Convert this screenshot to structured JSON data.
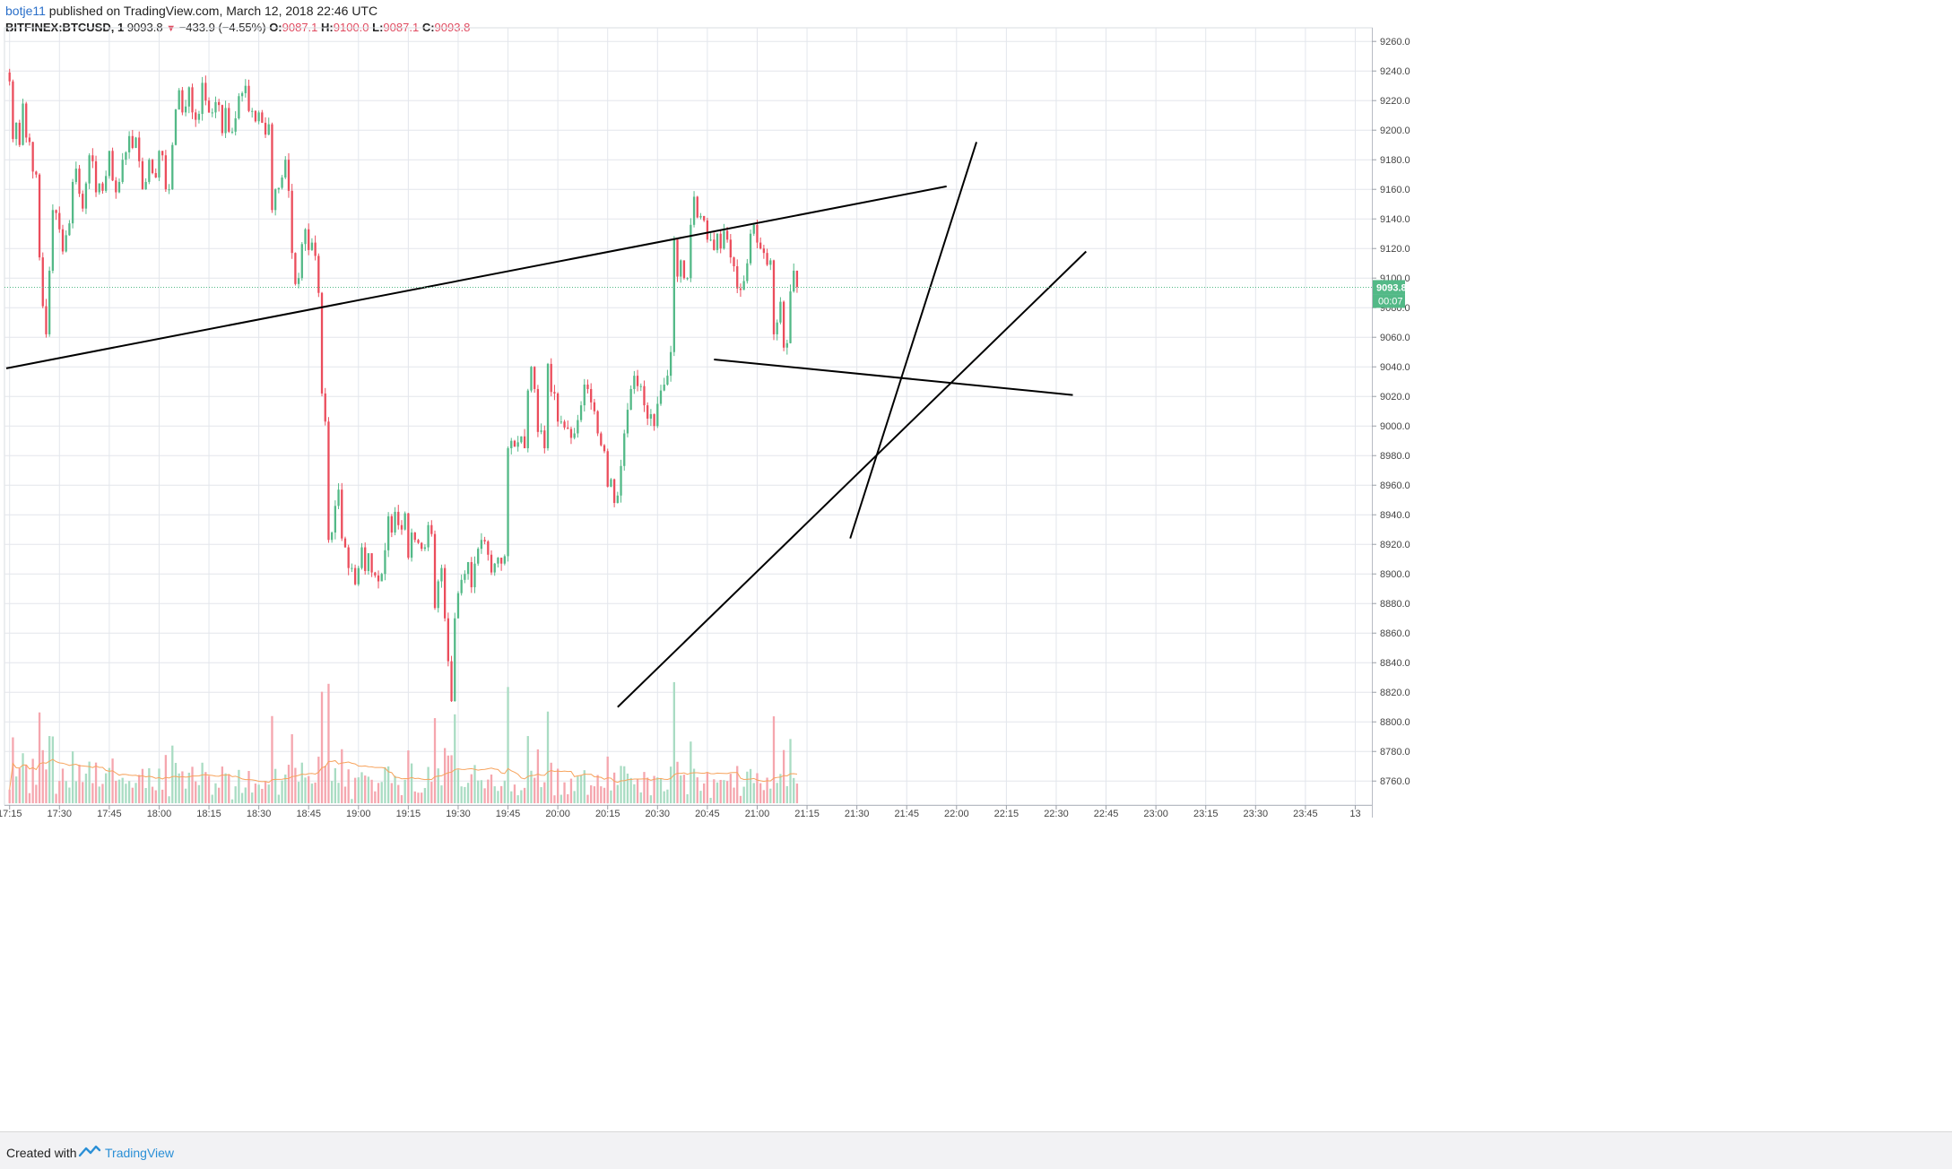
{
  "header": {
    "author": "botje11",
    "published_text": "published on TradingView.com, March 12, 2018 22:46 UTC",
    "symbol": "BITFINEX:BTCUSD, 1",
    "last": "9093.8",
    "change": "−433.9 (−4.55%)",
    "o_label": "O:",
    "o": "9087.1",
    "h_label": "H:",
    "h": "9100.0",
    "l_label": "L:",
    "l": "9087.1",
    "c_label": "C:",
    "c": "9093.8"
  },
  "footer": {
    "created_with": "Created with",
    "brand": "TradingView"
  },
  "chart_data": {
    "type": "candlestick",
    "title": "",
    "price_axis": {
      "min": 8745,
      "max": 9268,
      "ticks": [
        8760,
        8780,
        8800,
        8820,
        8840,
        8860,
        8880,
        8900,
        8920,
        8940,
        8960,
        8980,
        9000,
        9020,
        9040,
        9060,
        9080,
        9100,
        9120,
        9140,
        9160,
        9180,
        9200,
        9220,
        9240,
        9260
      ],
      "tick_labels": [
        "8760.0",
        "8780.0",
        "8800.0",
        "8820.0",
        "8840.0",
        "8860.0",
        "8880.0",
        "8900.0",
        "8920.0",
        "8940.0",
        "8960.0",
        "8980.0",
        "9000.0",
        "9020.0",
        "9040.0",
        "9060.0",
        "9080.0",
        "9100.0",
        "9120.0",
        "9140.0",
        "9160.0",
        "9180.0",
        "9200.0",
        "9220.0",
        "9240.0",
        "9260.0"
      ]
    },
    "time_axis": {
      "tick_labels": [
        "17:15",
        "17:30",
        "17:45",
        "18:00",
        "18:15",
        "18:30",
        "18:45",
        "19:00",
        "19:15",
        "19:30",
        "19:45",
        "20:00",
        "20:15",
        "20:30",
        "20:45",
        "21:00",
        "21:15",
        "21:30",
        "21:45",
        "22:00",
        "22:15",
        "22:30",
        "22:45",
        "23:00",
        "23:15",
        "23:30",
        "23:45",
        "13"
      ],
      "start_minute": 1034,
      "end_minute": 1445,
      "first_bar_minute": 1035,
      "bar_minutes": 1
    },
    "grid": true,
    "last_price": 9093.8,
    "last_price_label": "9093.8",
    "countdown_label": "00:07",
    "closes": [
      9233,
      9194,
      9205,
      9190,
      9218,
      9195,
      9192,
      9172,
      9170,
      9114,
      9081,
      9062,
      9105,
      9146,
      9144,
      9133,
      9118,
      9129,
      9137,
      9165,
      9174,
      9157,
      9147,
      9164,
      9183,
      9179,
      9158,
      9164,
      9159,
      9169,
      9186,
      9166,
      9158,
      9165,
      9180,
      9185,
      9196,
      9188,
      9195,
      9179,
      9160,
      9165,
      9180,
      9171,
      9168,
      9186,
      9183,
      9160,
      9160,
      9190,
      9214,
      9227,
      9212,
      9216,
      9229,
      9212,
      9207,
      9211,
      9232,
      9220,
      9212,
      9212,
      9219,
      9217,
      9198,
      9215,
      9199,
      9199,
      9208,
      9223,
      9225,
      9230,
      9213,
      9213,
      9206,
      9212,
      9205,
      9197,
      9204,
      9146,
      9160,
      9161,
      9168,
      9180,
      9159,
      9117,
      9096,
      9100,
      9123,
      9133,
      9119,
      9124,
      9115,
      9090,
      9022,
      9003,
      8923,
      8928,
      8946,
      8957,
      8924,
      8918,
      8904,
      8904,
      8893,
      8904,
      8918,
      8902,
      8914,
      8901,
      8899,
      8895,
      8900,
      8916,
      8939,
      8928,
      8942,
      8933,
      8930,
      8941,
      8911,
      8928,
      8923,
      8921,
      8917,
      8918,
      8933,
      8927,
      8877,
      8895,
      8904,
      8870,
      8841,
      8814,
      8870,
      8887,
      8896,
      8900,
      8908,
      8891,
      8907,
      8917,
      8923,
      8922,
      8913,
      8901,
      8907,
      8911,
      8907,
      8912,
      8985,
      8990,
      8986,
      8989,
      8993,
      8985,
      9024,
      9040,
      9025,
      8996,
      8997,
      8985,
      9042,
      9023,
      9022,
      9003,
      9003,
      8999,
      8998,
      8992,
      8995,
      9004,
      9014,
      9028,
      9025,
      9016,
      9010,
      8995,
      8987,
      8983,
      8959,
      8964,
      8948,
      8953,
      8973,
      8995,
      9011,
      9025,
      9034,
      9027,
      9027,
      9014,
      9005,
      9008,
      9000,
      9015,
      9024,
      9028,
      9034,
      9050,
      9126,
      9101,
      9112,
      9100,
      9100,
      9136,
      9155,
      9141,
      9142,
      9139,
      9126,
      9126,
      9119,
      9130,
      9120,
      9132,
      9126,
      9114,
      9108,
      9093,
      9092,
      9098,
      9110,
      9130,
      9136,
      9124,
      9120,
      9117,
      9109,
      9112,
      9062,
      9070,
      9084,
      9053,
      9056,
      9091,
      9105,
      9094
    ],
    "volume_unit_note": "",
    "trendlines": [
      {
        "x1_minute": 1034,
        "y1": 9039,
        "x2_minute": 1317,
        "y2": 9162
      },
      {
        "x1_minute": 1288,
        "y1": 8924,
        "x2_minute": 1326,
        "y2": 9192
      },
      {
        "x1_minute": 1218,
        "y1": 8810,
        "x2_minute": 1359,
        "y2": 9118
      },
      {
        "x1_minute": 1247,
        "y1": 9045,
        "x2_minute": 1355,
        "y2": 9021
      }
    ],
    "colors": {
      "up": "#53b987",
      "down": "#eb4d5c",
      "up_volume": "#a9dcc3",
      "down_volume": "#f5a6ae",
      "volume_ma": "#f7a35c",
      "grid": "#e3e6ec",
      "last_price": "#53b987"
    }
  }
}
